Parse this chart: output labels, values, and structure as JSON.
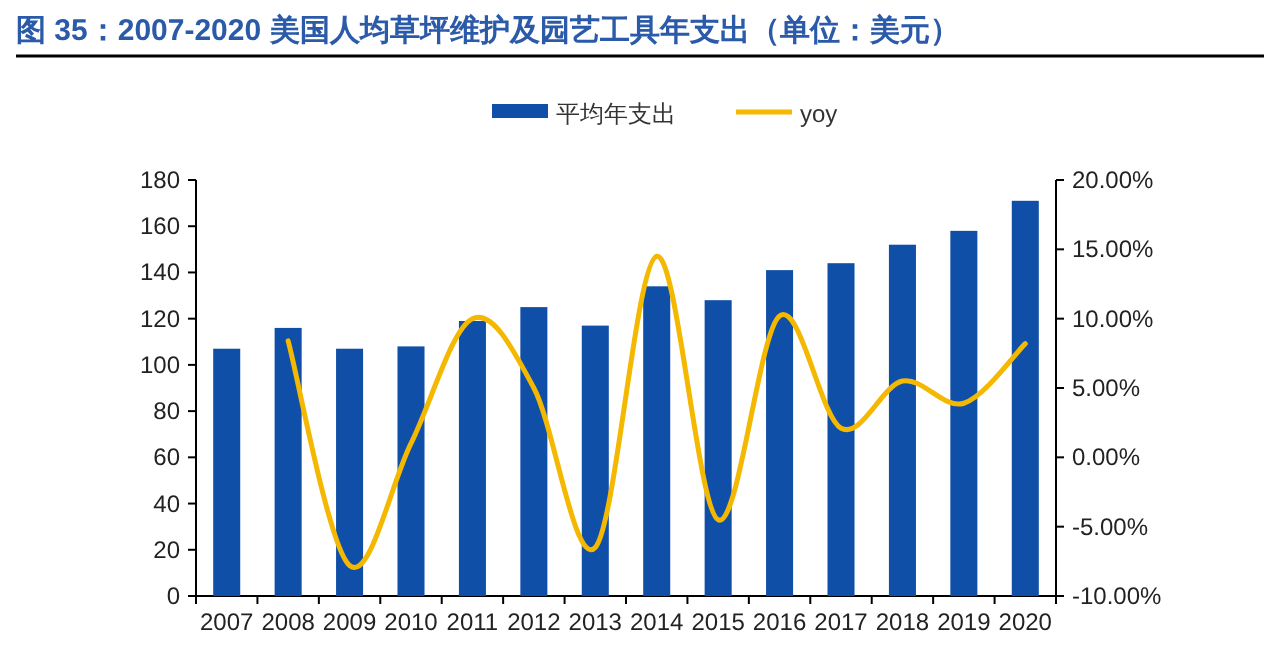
{
  "chart_data": {
    "type": "bar",
    "title": "图 35：2007-2020 美国人均草坪维护及园艺工具年支出（单位：美元）",
    "categories": [
      "2007",
      "2008",
      "2009",
      "2010",
      "2011",
      "2012",
      "2013",
      "2014",
      "2015",
      "2016",
      "2017",
      "2018",
      "2019",
      "2020"
    ],
    "series": [
      {
        "name": "平均年支出",
        "color": "#0f4fa8",
        "values": [
          107,
          116,
          107,
          108,
          119,
          125,
          117,
          134,
          128,
          141,
          144,
          152,
          158,
          171
        ]
      },
      {
        "name": "yoy",
        "type": "line",
        "axis": "y2",
        "color": "#f5b800",
        "values": [
          null,
          8.4,
          -7.8,
          1.0,
          10.0,
          5.0,
          -6.5,
          14.5,
          -4.5,
          10.2,
          2.1,
          5.5,
          3.9,
          8.2
        ]
      }
    ],
    "ylim": [
      0,
      180
    ],
    "yticks": [
      0,
      20,
      40,
      60,
      80,
      100,
      120,
      140,
      160,
      180
    ],
    "y2lim": [
      -10,
      20
    ],
    "y2ticks": [
      {
        "value": -10,
        "label": "-10.00%"
      },
      {
        "value": -5,
        "label": "-5.00%"
      },
      {
        "value": 0,
        "label": "0.00%"
      },
      {
        "value": 5,
        "label": "5.00%"
      },
      {
        "value": 10,
        "label": "10.00%"
      },
      {
        "value": 15,
        "label": "15.00%"
      },
      {
        "value": 20,
        "label": "20.00%"
      }
    ],
    "legend": "top",
    "grid": false
  }
}
